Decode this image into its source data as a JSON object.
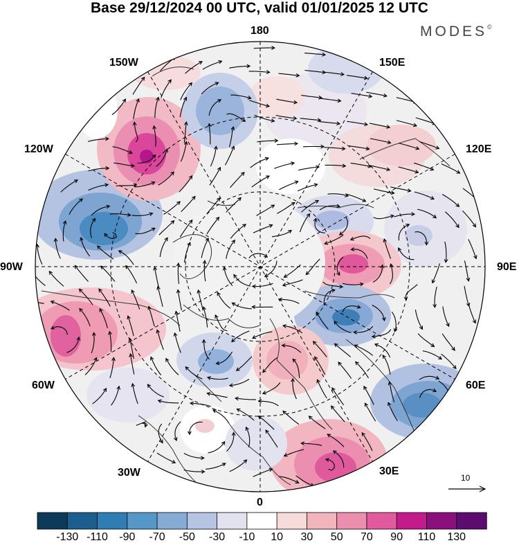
{
  "title": "Base 29/12/2024 00 UTC, valid 01/01/2025 12 UTC",
  "logo": "MODES",
  "logo_mark": "©",
  "longitude_labels": {
    "n180": "180",
    "n150e": "150E",
    "n120e": "120E",
    "n90e": "90E",
    "n60e": "60E",
    "n30e": "30E",
    "n0": "0",
    "n30w": "30W",
    "n60w": "60W",
    "n90w": "90W",
    "n120w": "120W",
    "n150w": "150W"
  },
  "reference_vector": {
    "label": "10"
  },
  "colorbar": {
    "levels": [
      "-130",
      "-110",
      "-90",
      "-70",
      "-50",
      "-30",
      "-10",
      "10",
      "30",
      "50",
      "70",
      "90",
      "110",
      "130"
    ],
    "colors": [
      "#0e3a5a",
      "#1c5f8e",
      "#2f7db4",
      "#5598c7",
      "#86acd6",
      "#b6c3e2",
      "#e2e2ef",
      "#ffffff",
      "#f7dada",
      "#f1b5be",
      "#ec8fae",
      "#e05a9c",
      "#c21c8c",
      "#8c0f7e",
      "#5b0c6e"
    ]
  },
  "map_colors": {
    "background": "#f0f0f0",
    "coast": "#333333",
    "graticule": "#000000"
  }
}
